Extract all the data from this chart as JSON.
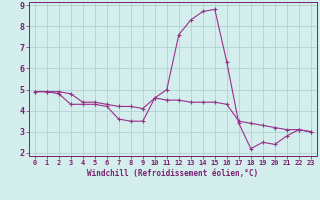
{
  "xlabel": "Windchill (Refroidissement éolien,°C)",
  "x_values": [
    0,
    1,
    2,
    3,
    4,
    5,
    6,
    7,
    8,
    9,
    10,
    11,
    12,
    13,
    14,
    15,
    16,
    17,
    18,
    19,
    20,
    21,
    22,
    23
  ],
  "line1_y": [
    4.9,
    4.9,
    4.9,
    4.8,
    4.4,
    4.4,
    4.3,
    4.2,
    4.2,
    4.1,
    4.6,
    4.5,
    4.5,
    4.4,
    4.4,
    4.4,
    4.3,
    3.5,
    3.4,
    3.3,
    3.2,
    3.1,
    3.1,
    3.0
  ],
  "line2_y": [
    4.9,
    4.9,
    4.8,
    4.3,
    4.3,
    4.3,
    4.2,
    3.6,
    3.5,
    3.5,
    4.6,
    5.0,
    7.6,
    8.3,
    8.7,
    8.8,
    6.3,
    3.4,
    2.2,
    2.5,
    2.4,
    2.8,
    3.1,
    3.0
  ],
  "line_color": "#9b2f8a",
  "bg_color": "#d4eeee",
  "grid_color": "#aacccc",
  "axis_color": "#7b2070",
  "ylim": [
    2,
    9
  ],
  "xlim": [
    0,
    23
  ],
  "yticks": [
    2,
    3,
    4,
    5,
    6,
    7,
    8,
    9
  ],
  "xticks": [
    0,
    1,
    2,
    3,
    4,
    5,
    6,
    7,
    8,
    9,
    10,
    11,
    12,
    13,
    14,
    15,
    16,
    17,
    18,
    19,
    20,
    21,
    22,
    23
  ],
  "tick_fontsize": 5.0,
  "xlabel_fontsize": 5.5
}
